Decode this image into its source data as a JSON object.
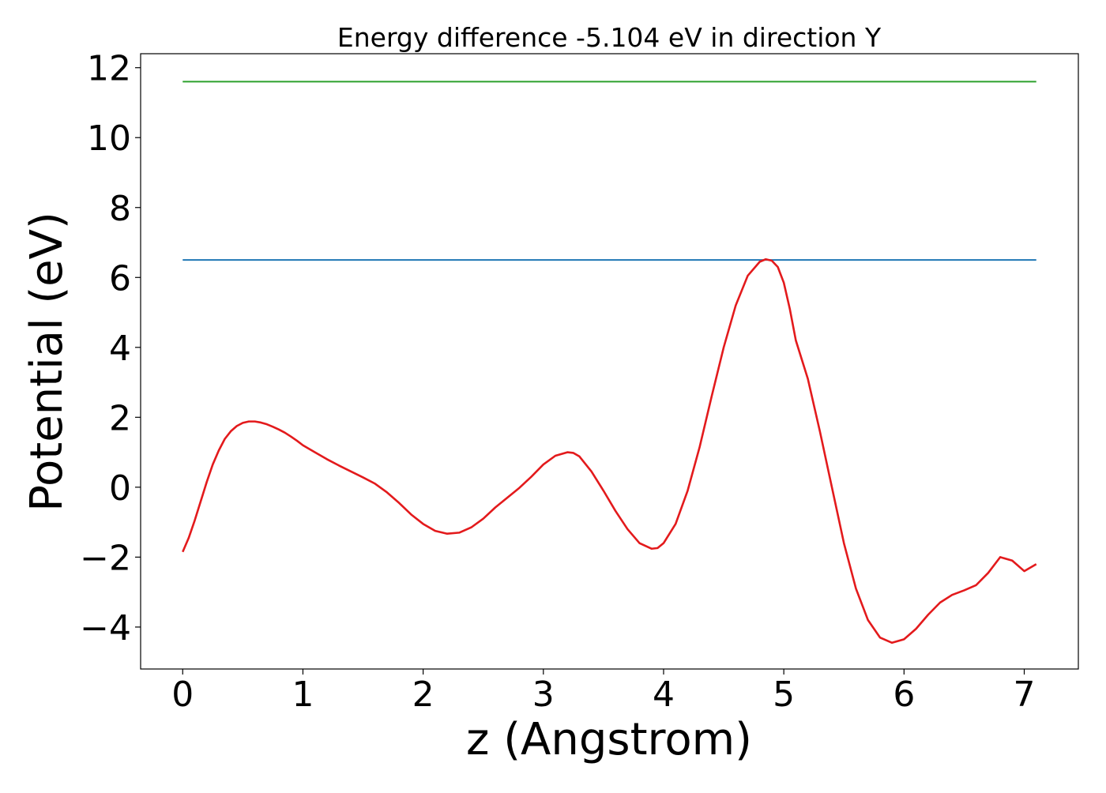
{
  "chart_data": {
    "type": "line",
    "title": "Energy difference -5.104 eV in direction Y",
    "xlabel": "z (Angstrom)",
    "ylabel": "Potential (eV)",
    "xlim": [
      -0.35,
      7.45
    ],
    "ylim": [
      -5.2,
      12.4
    ],
    "xticks": [
      0,
      1,
      2,
      3,
      4,
      5,
      6,
      7
    ],
    "yticks": [
      -4,
      -2,
      0,
      2,
      4,
      6,
      8,
      10,
      12
    ],
    "grid": false,
    "legend": "none",
    "series": [
      {
        "color": "#2ca02c",
        "style": "horizontal",
        "x": [
          0,
          7.1
        ],
        "y": [
          11.6,
          11.6
        ]
      },
      {
        "color": "#1f77b4",
        "style": "horizontal",
        "x": [
          0,
          7.1
        ],
        "y": [
          6.5,
          6.5
        ]
      },
      {
        "color": "#e31a1c",
        "style": "curve",
        "x": [
          0.0,
          0.05,
          0.1,
          0.15,
          0.2,
          0.25,
          0.3,
          0.35,
          0.4,
          0.45,
          0.5,
          0.55,
          0.6,
          0.65,
          0.7,
          0.75,
          0.8,
          0.85,
          0.9,
          0.95,
          1.0,
          1.1,
          1.2,
          1.3,
          1.4,
          1.5,
          1.6,
          1.7,
          1.8,
          1.9,
          2.0,
          2.1,
          2.2,
          2.3,
          2.4,
          2.5,
          2.6,
          2.7,
          2.8,
          2.9,
          3.0,
          3.1,
          3.2,
          3.25,
          3.3,
          3.4,
          3.5,
          3.6,
          3.7,
          3.8,
          3.9,
          3.95,
          4.0,
          4.1,
          4.2,
          4.3,
          4.4,
          4.5,
          4.6,
          4.7,
          4.8,
          4.85,
          4.9,
          4.95,
          5.0,
          5.05,
          5.1,
          5.2,
          5.3,
          5.4,
          5.5,
          5.6,
          5.7,
          5.8,
          5.9,
          6.0,
          6.1,
          6.2,
          6.3,
          6.4,
          6.5,
          6.6,
          6.7,
          6.8,
          6.9,
          7.0,
          7.1
        ],
        "y": [
          -1.85,
          -1.45,
          -0.95,
          -0.4,
          0.15,
          0.65,
          1.05,
          1.38,
          1.6,
          1.75,
          1.84,
          1.88,
          1.88,
          1.85,
          1.8,
          1.73,
          1.65,
          1.56,
          1.45,
          1.33,
          1.2,
          1.0,
          0.8,
          0.62,
          0.45,
          0.28,
          0.1,
          -0.15,
          -0.45,
          -0.78,
          -1.05,
          -1.25,
          -1.33,
          -1.3,
          -1.15,
          -0.9,
          -0.58,
          -0.3,
          -0.02,
          0.3,
          0.65,
          0.9,
          1.0,
          0.98,
          0.88,
          0.45,
          -0.1,
          -0.68,
          -1.2,
          -1.6,
          -1.76,
          -1.74,
          -1.6,
          -1.05,
          -0.1,
          1.15,
          2.6,
          4.0,
          5.2,
          6.05,
          6.45,
          6.52,
          6.48,
          6.3,
          5.85,
          5.1,
          4.2,
          3.1,
          1.6,
          0.0,
          -1.6,
          -2.9,
          -3.8,
          -4.3,
          -4.45,
          -4.35,
          -4.05,
          -3.65,
          -3.3,
          -3.08,
          -2.95,
          -2.8,
          -2.45,
          -2.0,
          -2.1,
          -2.4,
          -2.2
        ]
      }
    ]
  }
}
